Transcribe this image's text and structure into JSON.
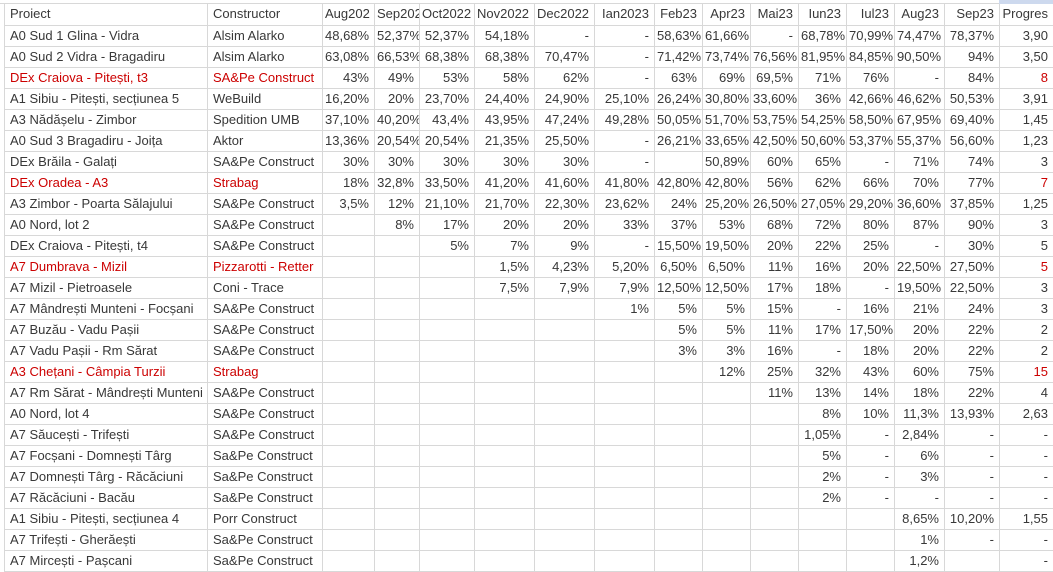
{
  "app": {
    "kind": "spreadsheet-table"
  },
  "colors": {
    "accent_red": "#cc0000",
    "gridline": "#d8d8d8",
    "text": "#383838",
    "selection_remnant_blue": "#cdd9ee"
  },
  "table": {
    "columns": [
      {
        "key": "proiect",
        "label": "Proiect"
      },
      {
        "key": "constructor",
        "label": "Constructor"
      },
      {
        "key": "aug2022",
        "label": "Aug202"
      },
      {
        "key": "sep2022",
        "label": "Sep202"
      },
      {
        "key": "oct2022",
        "label": "Oct2022"
      },
      {
        "key": "nov2022",
        "label": "Nov2022"
      },
      {
        "key": "dec2022",
        "label": "Dec2022"
      },
      {
        "key": "ian2023",
        "label": "Ian2023"
      },
      {
        "key": "feb23",
        "label": "Feb23"
      },
      {
        "key": "apr23",
        "label": "Apr23"
      },
      {
        "key": "mai23",
        "label": "Mai23"
      },
      {
        "key": "iun23",
        "label": "Iun23"
      },
      {
        "key": "iul23",
        "label": "Iul23"
      },
      {
        "key": "aug23",
        "label": "Aug23"
      },
      {
        "key": "sep23",
        "label": "Sep23"
      },
      {
        "key": "progres",
        "label": "Progres"
      }
    ],
    "rows": [
      {
        "red": false,
        "proiect": "A0 Sud 1 Glina - Vidra",
        "constructor": "Alsim Alarko",
        "months": [
          "48,68%",
          "52,37%",
          "52,37%",
          "54,18%",
          "-",
          "-",
          "58,63%",
          "61,66%",
          "-",
          "68,78%",
          "70,99%",
          "74,47%",
          "78,37%"
        ],
        "progres": "3,90"
      },
      {
        "red": false,
        "proiect": "A0 Sud 2 Vidra - Bragadiru",
        "constructor": "Alsim Alarko",
        "months": [
          "63,08%",
          "66,53%",
          "68,38%",
          "68,38%",
          "70,47%",
          "-",
          "71,42%",
          "73,74%",
          "76,56%",
          "81,95%",
          "84,85%",
          "90,50%",
          "94%"
        ],
        "progres": "3,50"
      },
      {
        "red": true,
        "proiect": "DEx Craiova - Pitești, t3",
        "constructor": "SA&Pe Construct",
        "months": [
          "43%",
          "49%",
          "53%",
          "58%",
          "62%",
          "-",
          "63%",
          "69%",
          "69,5%",
          "71%",
          "76%",
          "-",
          "84%"
        ],
        "progres": "8"
      },
      {
        "red": false,
        "proiect": "A1 Sibiu - Pitești, secțiunea 5",
        "constructor": "WeBuild",
        "months": [
          "16,20%",
          "20%",
          "23,70%",
          "24,40%",
          "24,90%",
          "25,10%",
          "26,24%",
          "30,80%",
          "33,60%",
          "36%",
          "42,66%",
          "46,62%",
          "50,53%"
        ],
        "progres": "3,91"
      },
      {
        "red": false,
        "proiect": "A3 Nădășelu - Zimbor",
        "constructor": "Spedition UMB",
        "months": [
          "37,10%",
          "40,20%",
          "43,4%",
          "43,95%",
          "47,24%",
          "49,28%",
          "50,05%",
          "51,70%",
          "53,75%",
          "54,25%",
          "58,50%",
          "67,95%",
          "69,40%"
        ],
        "progres": "1,45"
      },
      {
        "red": false,
        "proiect": "A0 Sud 3 Bragadiru - Joița",
        "constructor": "Aktor",
        "months": [
          "13,36%",
          "20,54%",
          "20,54%",
          "21,35%",
          "25,50%",
          "-",
          "26,21%",
          "33,65%",
          "42,50%",
          "50,60%",
          "53,37%",
          "55,37%",
          "56,60%"
        ],
        "progres": "1,23"
      },
      {
        "red": false,
        "proiect": "DEx Brăila - Galați",
        "constructor": "SA&Pe Construct",
        "months": [
          "30%",
          "30%",
          "30%",
          "30%",
          "30%",
          "-",
          "",
          "50,89%",
          "60%",
          "65%",
          "-",
          "71%",
          "74%"
        ],
        "progres": "3"
      },
      {
        "red": true,
        "proiect": "DEx Oradea - A3",
        "constructor": "Strabag",
        "months": [
          "18%",
          "32,8%",
          "33,50%",
          "41,20%",
          "41,60%",
          "41,80%",
          "42,80%",
          "42,80%",
          "56%",
          "62%",
          "66%",
          "70%",
          "77%"
        ],
        "progres": "7"
      },
      {
        "red": false,
        "proiect": "A3 Zimbor - Poarta Sălajului",
        "constructor": "SA&Pe Construct",
        "months": [
          "3,5%",
          "12%",
          "21,10%",
          "21,70%",
          "22,30%",
          "23,62%",
          "24%",
          "25,20%",
          "26,50%",
          "27,05%",
          "29,20%",
          "36,60%",
          "37,85%"
        ],
        "progres": "1,25"
      },
      {
        "red": false,
        "proiect": "A0 Nord, lot 2",
        "constructor": "SA&Pe Construct",
        "months": [
          "",
          "8%",
          "17%",
          "20%",
          "20%",
          "33%",
          "37%",
          "53%",
          "68%",
          "72%",
          "80%",
          "87%",
          "90%"
        ],
        "progres": "3"
      },
      {
        "red": false,
        "proiect": "DEx Craiova - Pitești, t4",
        "constructor": "SA&Pe Construct",
        "months": [
          "",
          "",
          "5%",
          "7%",
          "9%",
          "-",
          "15,50%",
          "19,50%",
          "20%",
          "22%",
          "25%",
          "-",
          "30%"
        ],
        "progres": "5"
      },
      {
        "red": true,
        "proiect": "A7 Dumbrava - Mizil",
        "constructor": "Pizzarotti - Retter",
        "months": [
          "",
          "",
          "",
          "1,5%",
          "4,23%",
          "5,20%",
          "6,50%",
          "6,50%",
          "11%",
          "16%",
          "20%",
          "22,50%",
          "27,50%"
        ],
        "progres": "5"
      },
      {
        "red": false,
        "proiect": "A7 Mizil - Pietroasele",
        "constructor": "Coni - Trace",
        "months": [
          "",
          "",
          "",
          "7,5%",
          "7,9%",
          "7,9%",
          "12,50%",
          "12,50%",
          "17%",
          "18%",
          "-",
          "19,50%",
          "22,50%"
        ],
        "progres": "3"
      },
      {
        "red": false,
        "proiect": "A7 Mândrești Munteni - Focșani",
        "constructor": "SA&Pe Construct",
        "months": [
          "",
          "",
          "",
          "",
          "",
          "1%",
          "5%",
          "5%",
          "15%",
          "-",
          "16%",
          "21%",
          "24%"
        ],
        "progres": "3"
      },
      {
        "red": false,
        "proiect": "A7 Buzău - Vadu Pașii",
        "constructor": "SA&Pe Construct",
        "months": [
          "",
          "",
          "",
          "",
          "",
          "",
          "5%",
          "5%",
          "11%",
          "17%",
          "17,50%",
          "20%",
          "22%"
        ],
        "progres": "2"
      },
      {
        "red": false,
        "proiect": "A7 Vadu Pașii - Rm Sărat",
        "constructor": "SA&Pe Construct",
        "months": [
          "",
          "",
          "",
          "",
          "",
          "",
          "3%",
          "3%",
          "16%",
          "-",
          "18%",
          "20%",
          "22%"
        ],
        "progres": "2"
      },
      {
        "red": true,
        "proiect": "A3 Chețani - Câmpia Turzii",
        "constructor": "Strabag",
        "months": [
          "",
          "",
          "",
          "",
          "",
          "",
          "",
          "12%",
          "25%",
          "32%",
          "43%",
          "60%",
          "75%"
        ],
        "progres": "15"
      },
      {
        "red": false,
        "proiect": "A7 Rm Sărat - Mândrești Munteni",
        "constructor": "SA&Pe Construct",
        "months": [
          "",
          "",
          "",
          "",
          "",
          "",
          "",
          "",
          "11%",
          "13%",
          "14%",
          "18%",
          "22%"
        ],
        "progres": "4"
      },
      {
        "red": false,
        "proiect": "A0 Nord, lot 4",
        "constructor": "SA&Pe Construct",
        "months": [
          "",
          "",
          "",
          "",
          "",
          "",
          "",
          "",
          "",
          "8%",
          "10%",
          "11,3%",
          "13,93%"
        ],
        "progres": "2,63"
      },
      {
        "red": false,
        "proiect": "A7 Săucești - Trifești",
        "constructor": "SA&Pe Construct",
        "months": [
          "",
          "",
          "",
          "",
          "",
          "",
          "",
          "",
          "",
          "1,05%",
          "-",
          "2,84%",
          "-"
        ],
        "progres": "-"
      },
      {
        "red": false,
        "proiect": "A7 Focșani - Domnești Târg",
        "constructor": "Sa&Pe Construct",
        "months": [
          "",
          "",
          "",
          "",
          "",
          "",
          "",
          "",
          "",
          "5%",
          "-",
          "6%",
          "-"
        ],
        "progres": "-"
      },
      {
        "red": false,
        "proiect": "A7 Domnești Târg - Răcăciuni",
        "constructor": "Sa&Pe Construct",
        "months": [
          "",
          "",
          "",
          "",
          "",
          "",
          "",
          "",
          "",
          "2%",
          "-",
          "3%",
          "-"
        ],
        "progres": "-"
      },
      {
        "red": false,
        "proiect": "A7 Răcăciuni - Bacău",
        "constructor": "Sa&Pe Construct",
        "months": [
          "",
          "",
          "",
          "",
          "",
          "",
          "",
          "",
          "",
          "2%",
          "-",
          "-",
          "-"
        ],
        "progres": "-"
      },
      {
        "red": false,
        "proiect": "A1 Sibiu - Pitești, secțiunea 4",
        "constructor": "Porr Construct",
        "months": [
          "",
          "",
          "",
          "",
          "",
          "",
          "",
          "",
          "",
          "",
          "",
          "8,65%",
          "10,20%"
        ],
        "progres": "1,55"
      },
      {
        "red": false,
        "proiect": "A7 Trifești - Gherăești",
        "constructor": "Sa&Pe Construct",
        "months": [
          "",
          "",
          "",
          "",
          "",
          "",
          "",
          "",
          "",
          "",
          "",
          "1%",
          "-"
        ],
        "progres": "-"
      },
      {
        "red": false,
        "proiect": "A7 Mircești - Pașcani",
        "constructor": "Sa&Pe Construct",
        "months": [
          "",
          "",
          "",
          "",
          "",
          "",
          "",
          "",
          "",
          "",
          "",
          "1,2%",
          ""
        ],
        "progres": "-"
      }
    ]
  }
}
